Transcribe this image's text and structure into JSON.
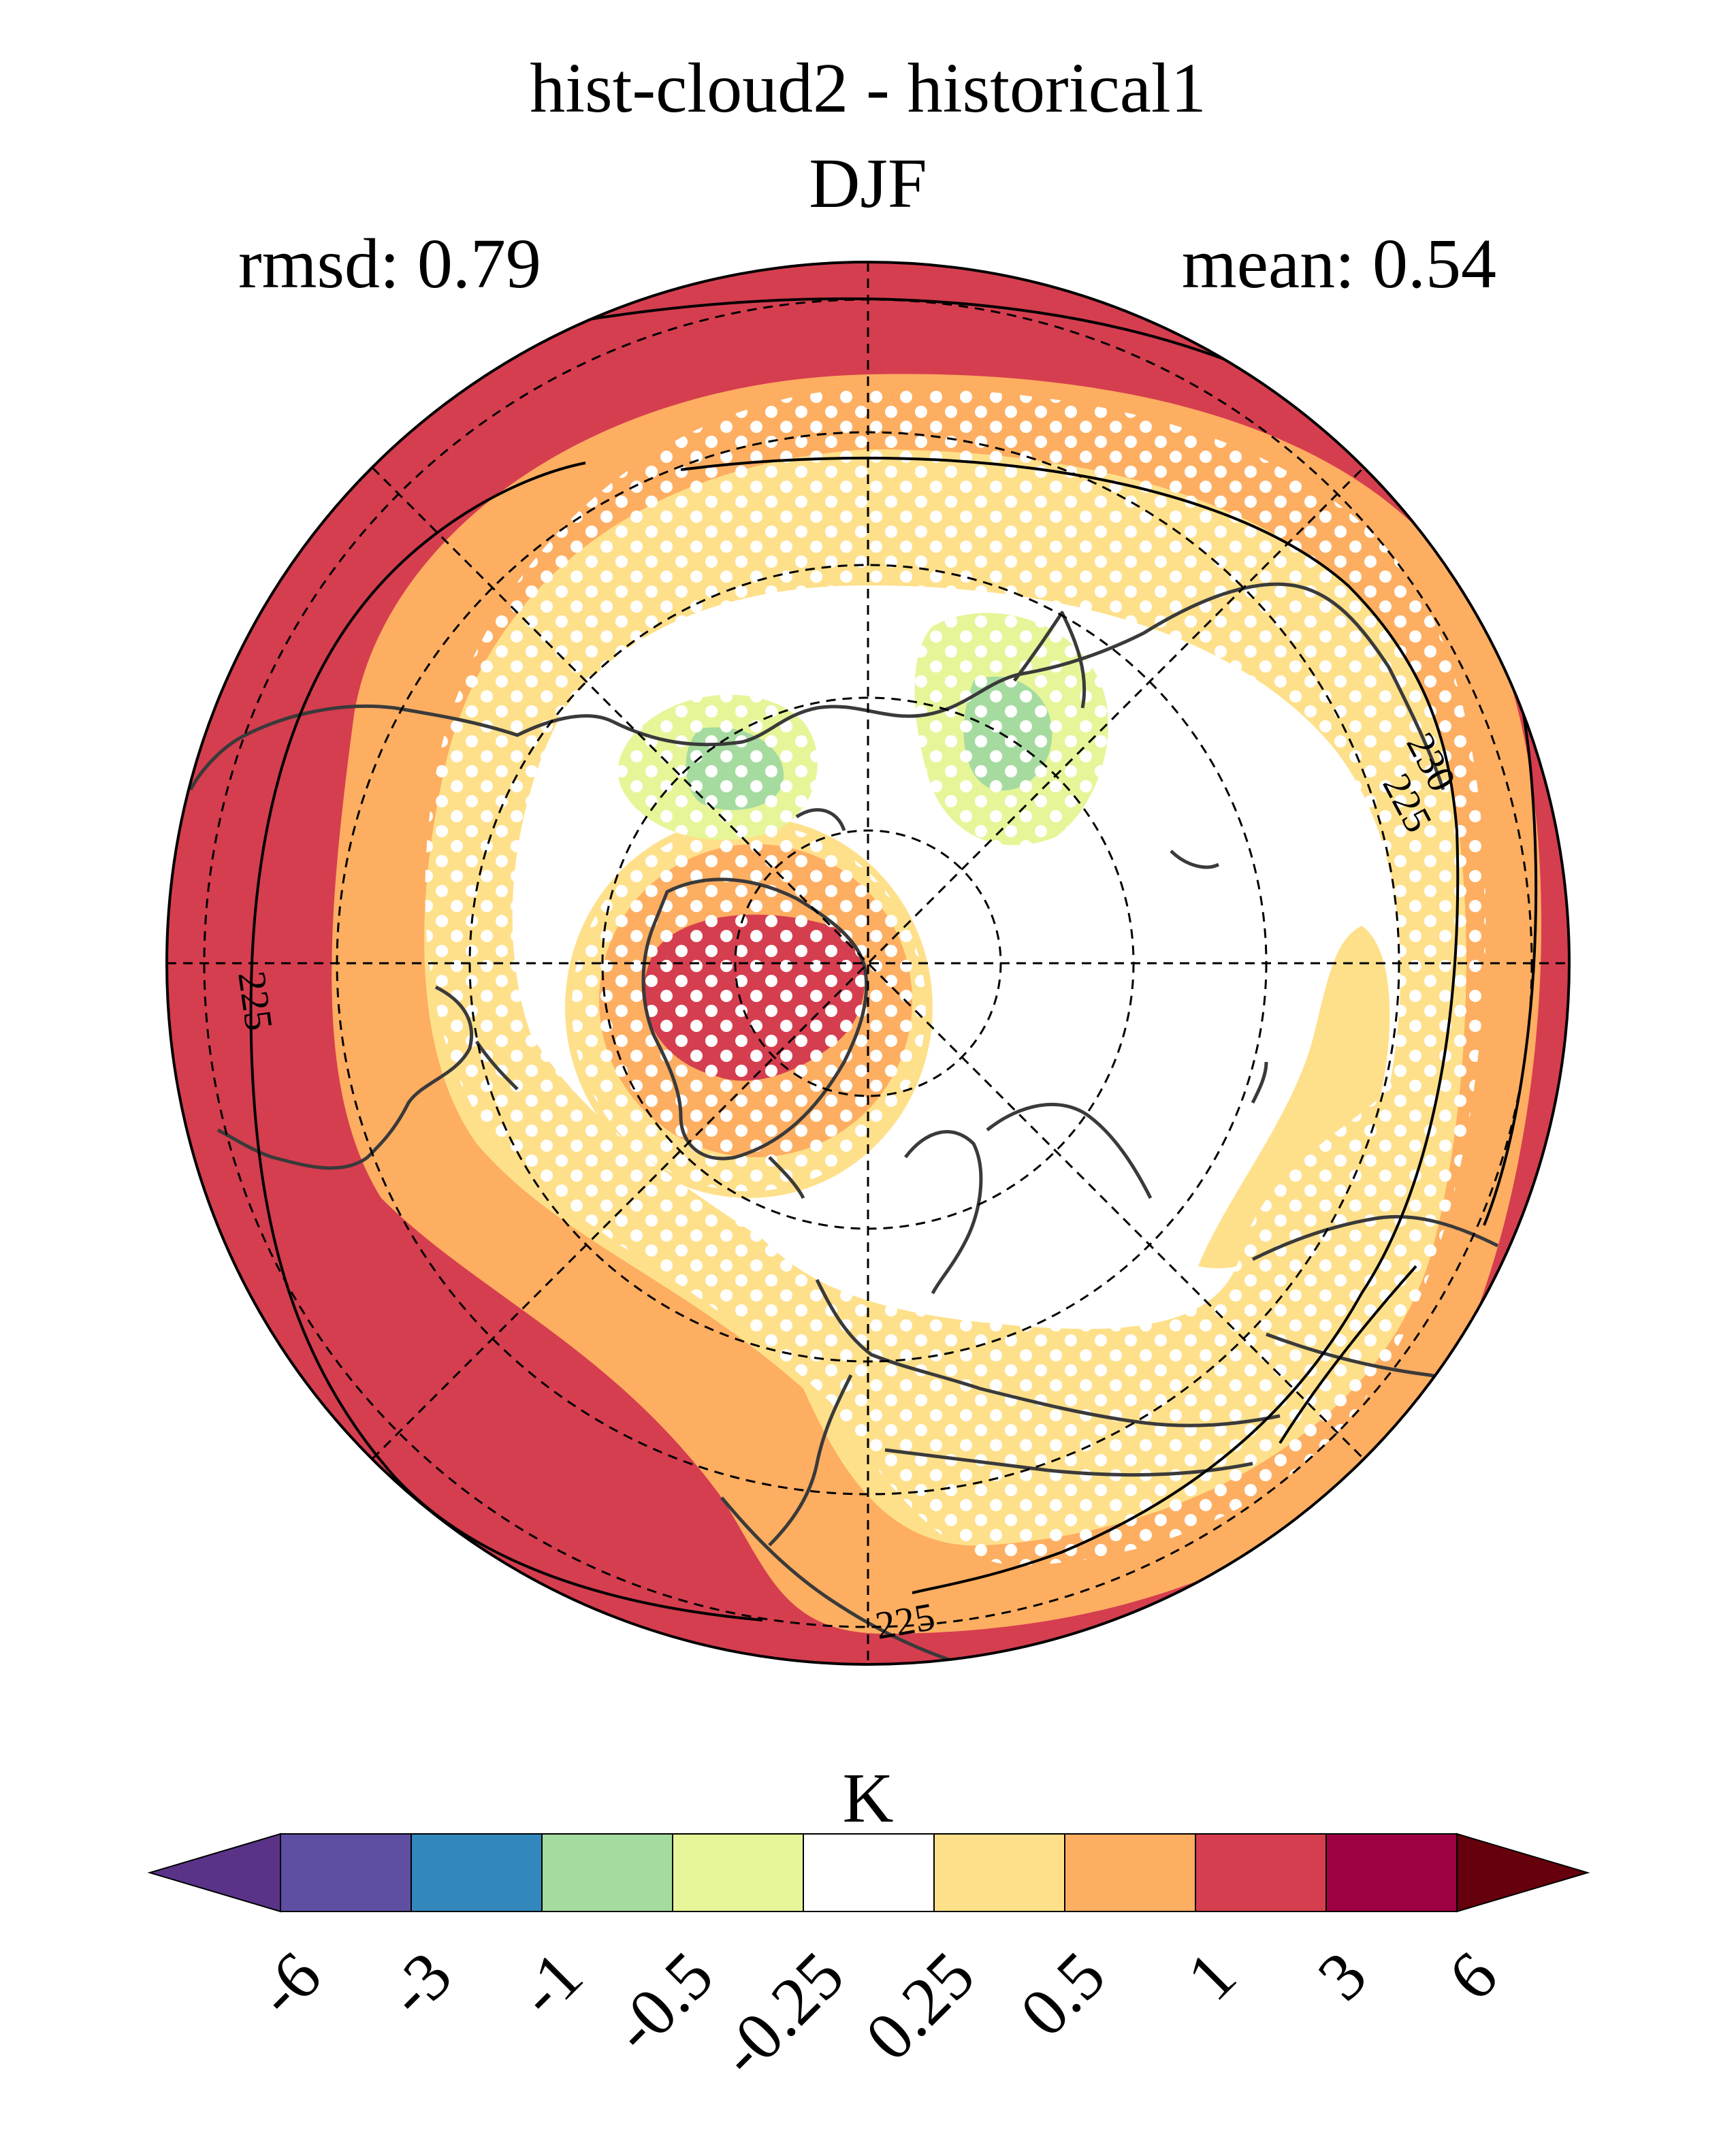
{
  "title": "hist-cloud2 - historical1",
  "subtitle": "DJF",
  "stats": {
    "rmsd_label": "rmsd: 0.79",
    "mean_label": "mean: 0.54"
  },
  "map": {
    "projection": "north-polar-stereographic",
    "contour_labels": [
      "230",
      "225",
      "225",
      "225"
    ],
    "stippling": "white dots mark significant regions"
  },
  "colorbar": {
    "unit": "K",
    "tick_labels": [
      "-6",
      "-3",
      "-1",
      "-0.5",
      "-0.25",
      "0.25",
      "0.5",
      "1",
      "3",
      "6"
    ],
    "colors": {
      "under": "#5a3388",
      "bins": [
        "#5e4fa2",
        "#3288bd",
        "#a6dba0",
        "#e6f598",
        "#ffffff",
        "#fee08b",
        "#fdae61",
        "#d53e4f",
        "#9e0142"
      ],
      "over": "#67000d"
    }
  }
}
